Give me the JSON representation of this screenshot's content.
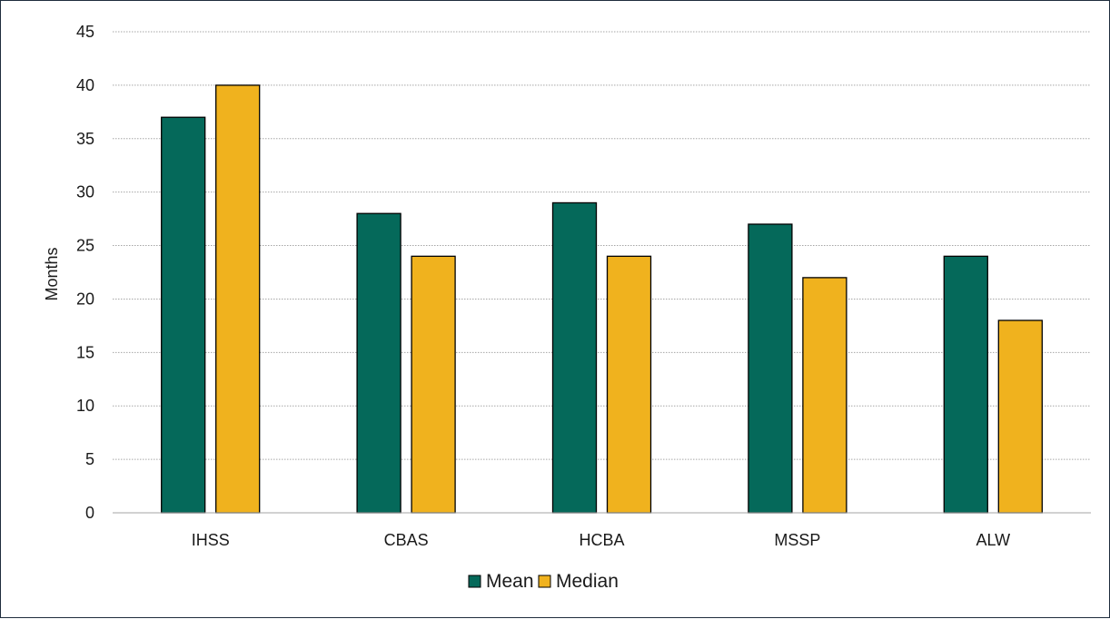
{
  "chart_data": {
    "type": "bar",
    "categories": [
      "IHSS",
      "CBAS",
      "HCBA",
      "MSSP",
      "ALW"
    ],
    "series": [
      {
        "name": "Mean",
        "values": [
          37,
          28,
          29,
          27,
          24
        ],
        "color": "#05695a"
      },
      {
        "name": "Median",
        "values": [
          40,
          24,
          24,
          22,
          18
        ],
        "color": "#f0b21e"
      }
    ],
    "title": "",
    "xlabel": "",
    "ylabel": "Months",
    "ylim": [
      0,
      45
    ],
    "yticks": [
      "0",
      "5",
      "10",
      "15",
      "20",
      "25",
      "30",
      "35",
      "40",
      "45"
    ],
    "grid": true,
    "legend_position": "bottom-center"
  }
}
